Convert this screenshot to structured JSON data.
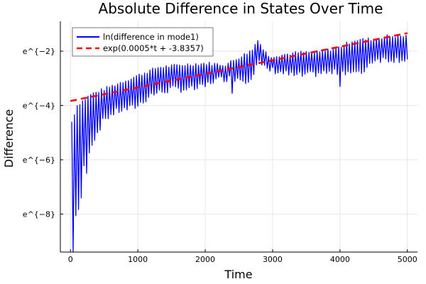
{
  "chart_data": {
    "type": "line",
    "title": "Absolute Difference in States Over Time",
    "xlabel": "Time",
    "ylabel": "Difference",
    "xlim": [
      -150,
      5150
    ],
    "ylim": [
      -9.4,
      -0.9
    ],
    "x_ticks": [
      0,
      1000,
      2000,
      3000,
      4000,
      5000
    ],
    "x_tick_labels": [
      "0",
      "1000",
      "2000",
      "3000",
      "4000",
      "5000"
    ],
    "y_ticks": [
      -8,
      -6,
      -4,
      -2
    ],
    "y_tick_labels": [
      "e^{−8}",
      "e^{−6}",
      "e^{−4}",
      "e^{−2}"
    ],
    "grid": true,
    "legend": {
      "position": "top-left",
      "entries": [
        "ln(difference in mode1)",
        "exp(0.0005*t + -3.8357)"
      ]
    },
    "series": [
      {
        "name": "ln(difference in mode1)",
        "color": "#0000ff",
        "style": "solid",
        "period": 40,
        "upper_envelope": {
          "x": [
            20,
            100,
            300,
            600,
            1000,
            1300,
            1700,
            2000,
            2300,
            2600,
            2700,
            2780,
            2850,
            2950,
            3100,
            3400,
            3700,
            4000,
            4200,
            4500,
            4700,
            5000
          ],
          "y": [
            -4.6,
            -4.0,
            -3.6,
            -3.3,
            -2.9,
            -2.6,
            -2.5,
            -2.45,
            -2.5,
            -2.1,
            -1.95,
            -1.55,
            -1.9,
            -2.2,
            -2.15,
            -2.05,
            -2.05,
            -1.85,
            -1.6,
            -1.55,
            -1.45,
            -1.45
          ]
        },
        "lower_envelope": {
          "x": [
            20,
            60,
            100,
            160,
            200,
            300,
            500,
            700,
            900,
            1000,
            1200,
            1500,
            1800,
            2000,
            2100,
            2300,
            2500,
            2600,
            2700,
            2780,
            2850,
            2950,
            3000,
            3300,
            3500,
            3700,
            3900,
            4000,
            4100,
            4300,
            4500,
            4700,
            5000
          ],
          "y": [
            -9.3,
            -8.0,
            -8.0,
            -7.5,
            -6.2,
            -5.5,
            -4.5,
            -4.2,
            -4.1,
            -4.0,
            -3.6,
            -3.4,
            -3.4,
            -3.3,
            -3.1,
            -3.0,
            -3.0,
            -3.1,
            -2.9,
            -2.35,
            -2.6,
            -2.7,
            -2.7,
            -2.9,
            -2.9,
            -2.8,
            -2.8,
            -2.75,
            -2.75,
            -2.85,
            -2.3,
            -2.3,
            -2.3
          ]
        },
        "dips": [
          {
            "x": 30,
            "y": -9.4
          },
          {
            "x": 140,
            "y": -8.4
          },
          {
            "x": 230,
            "y": -6.5
          },
          {
            "x": 2400,
            "y": -3.55
          },
          {
            "x": 4000,
            "y": -3.3
          }
        ]
      },
      {
        "name": "exp(0.0005*t + -3.8357)",
        "color": "#ff0000",
        "style": "dashed",
        "x": [
          0,
          5000
        ],
        "y": [
          -3.8357,
          -1.3357
        ]
      }
    ]
  }
}
